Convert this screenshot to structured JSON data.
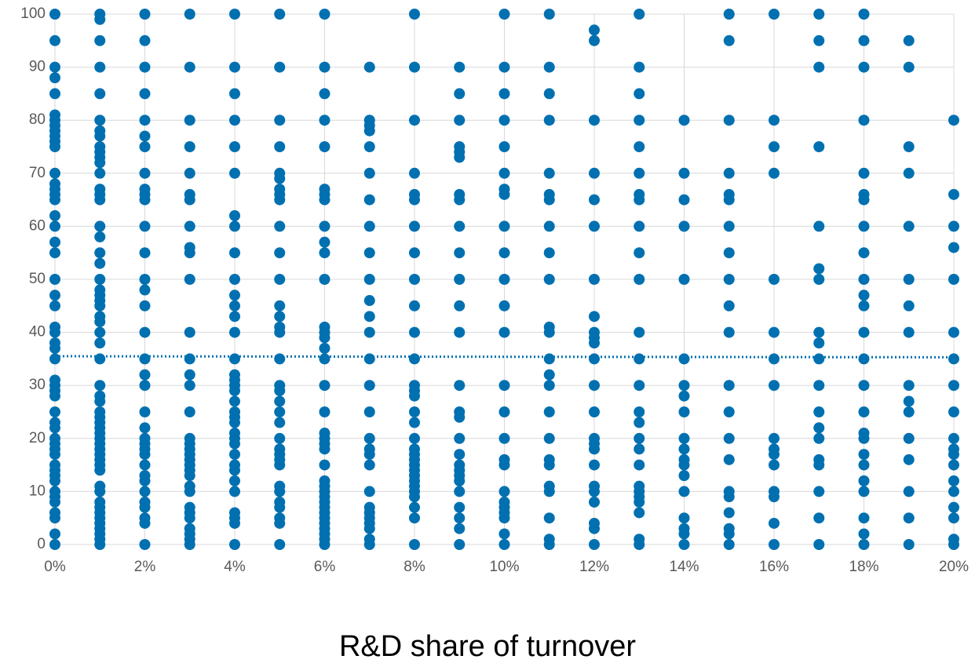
{
  "chart_data": {
    "type": "scatter",
    "x_label": "R&D share of turnover",
    "color": "#0070b0",
    "grid": true,
    "xlim": [
      0,
      20
    ],
    "ylim": [
      0,
      100
    ],
    "xticks": [
      {
        "value": 0,
        "label": "0%"
      },
      {
        "value": 2,
        "label": "2%"
      },
      {
        "value": 4,
        "label": "4%"
      },
      {
        "value": 6,
        "label": "6%"
      },
      {
        "value": 8,
        "label": "8%"
      },
      {
        "value": 10,
        "label": "10%"
      },
      {
        "value": 12,
        "label": "12%"
      },
      {
        "value": 14,
        "label": "14%"
      },
      {
        "value": 16,
        "label": "16%"
      },
      {
        "value": 18,
        "label": "18%"
      },
      {
        "value": 20,
        "label": "20%"
      }
    ],
    "yticks": [
      0,
      10,
      20,
      30,
      40,
      50,
      60,
      70,
      80,
      90,
      100
    ],
    "trendline": {
      "x": [
        0,
        20
      ],
      "values": [
        35.5,
        35.3
      ]
    },
    "x": [
      0,
      0,
      0,
      0,
      0,
      0,
      0,
      0,
      0,
      0,
      0,
      0,
      0,
      0,
      0,
      0,
      0,
      0,
      0,
      0,
      0,
      0,
      0,
      0,
      0,
      0,
      0,
      0,
      0,
      0,
      0,
      0,
      0,
      0,
      0,
      0,
      0,
      0,
      0,
      0,
      0,
      0,
      0,
      0,
      0,
      0,
      0,
      0,
      0,
      0,
      0,
      1,
      1,
      1,
      1,
      1,
      1,
      1,
      1,
      1,
      1,
      1,
      1,
      1,
      1,
      1,
      1,
      1,
      1,
      1,
      1,
      1,
      1,
      1,
      1,
      1,
      1,
      1,
      1,
      1,
      1,
      1,
      1,
      1,
      1,
      1,
      1,
      1,
      1,
      1,
      1,
      1,
      1,
      1,
      1,
      1,
      1,
      1,
      1,
      1,
      1,
      1,
      1,
      1,
      1,
      1,
      1,
      2,
      2,
      2,
      2,
      2,
      2,
      2,
      2,
      2,
      2,
      2,
      2,
      2,
      2,
      2,
      2,
      2,
      2,
      2,
      2,
      2,
      2,
      2,
      2,
      2,
      2,
      2,
      2,
      2,
      2,
      2,
      2,
      2,
      2,
      2,
      3,
      3,
      3,
      3,
      3,
      3,
      3,
      3,
      3,
      3,
      3,
      3,
      3,
      3,
      3,
      3,
      3,
      3,
      3,
      3,
      3,
      3,
      3,
      3,
      3,
      3,
      3,
      3,
      3,
      3,
      3,
      3,
      3,
      4,
      4,
      4,
      4,
      4,
      4,
      4,
      4,
      4,
      4,
      4,
      4,
      4,
      4,
      4,
      4,
      4,
      4,
      4,
      4,
      4,
      4,
      4,
      4,
      4,
      4,
      4,
      4,
      4,
      4,
      4,
      4,
      4,
      4,
      4,
      5,
      5,
      5,
      5,
      5,
      5,
      5,
      5,
      5,
      5,
      5,
      5,
      5,
      5,
      5,
      5,
      5,
      5,
      5,
      5,
      5,
      5,
      5,
      5,
      5,
      5,
      5,
      5,
      5,
      5,
      5,
      5,
      5,
      5,
      6,
      6,
      6,
      6,
      6,
      6,
      6,
      6,
      6,
      6,
      6,
      6,
      6,
      6,
      6,
      6,
      6,
      6,
      6,
      6,
      6,
      6,
      6,
      6,
      6,
      6,
      6,
      6,
      6,
      6,
      6,
      6,
      6,
      6,
      6,
      6,
      6,
      7,
      7,
      7,
      7,
      7,
      7,
      7,
      7,
      7,
      7,
      7,
      7,
      7,
      7,
      7,
      7,
      7,
      7,
      7,
      7,
      7,
      7,
      7,
      7,
      7,
      7,
      7,
      7,
      8,
      8,
      8,
      8,
      8,
      8,
      8,
      8,
      8,
      8,
      8,
      8,
      8,
      8,
      8,
      8,
      8,
      8,
      8,
      8,
      8,
      8,
      8,
      8,
      8,
      8,
      8,
      8,
      8,
      8,
      8,
      9,
      9,
      9,
      9,
      9,
      9,
      9,
      9,
      9,
      9,
      9,
      9,
      9,
      9,
      9,
      9,
      9,
      9,
      9,
      9,
      9,
      9,
      9,
      9,
      9,
      9,
      9,
      10,
      10,
      10,
      10,
      10,
      10,
      10,
      10,
      10,
      10,
      10,
      10,
      10,
      10,
      10,
      10,
      10,
      10,
      10,
      10,
      10,
      10,
      10,
      10,
      10,
      11,
      11,
      11,
      11,
      11,
      11,
      11,
      11,
      11,
      11,
      11,
      11,
      11,
      11,
      11,
      11,
      11,
      11,
      11,
      11,
      11,
      11,
      11,
      11,
      12,
      12,
      12,
      12,
      12,
      12,
      12,
      12,
      12,
      12,
      12,
      12,
      12,
      12,
      12,
      12,
      12,
      12,
      12,
      12,
      12,
      12,
      12,
      12,
      13,
      13,
      13,
      13,
      13,
      13,
      13,
      13,
      13,
      13,
      13,
      13,
      13,
      13,
      13,
      13,
      13,
      13,
      13,
      13,
      13,
      13,
      13,
      13,
      13,
      13,
      14,
      14,
      14,
      14,
      14,
      14,
      14,
      14,
      14,
      14,
      14,
      14,
      14,
      14,
      14,
      14,
      14,
      14,
      14,
      15,
      15,
      15,
      15,
      15,
      15,
      15,
      15,
      15,
      15,
      15,
      15,
      15,
      15,
      15,
      15,
      15,
      15,
      15,
      15,
      15,
      16,
      16,
      16,
      16,
      16,
      16,
      16,
      16,
      16,
      16,
      16,
      16,
      16,
      16,
      16,
      16,
      17,
      17,
      17,
      17,
      17,
      17,
      17,
      17,
      17,
      17,
      17,
      17,
      17,
      17,
      17,
      17,
      17,
      17,
      17,
      18,
      18,
      18,
      18,
      18,
      18,
      18,
      18,
      18,
      18,
      18,
      18,
      18,
      18,
      18,
      18,
      18,
      18,
      18,
      18,
      18,
      18,
      18,
      18,
      18,
      19,
      19,
      19,
      19,
      19,
      19,
      19,
      19,
      19,
      19,
      19,
      19,
      19,
      19,
      19,
      19,
      20,
      20,
      20,
      20,
      20,
      20,
      20,
      20,
      20,
      20,
      20,
      20,
      20,
      20,
      20,
      20,
      20,
      20,
      20
    ],
    "values": [
      100,
      95,
      90,
      88,
      85,
      81,
      80,
      79,
      78,
      77,
      76,
      75,
      70,
      68,
      67,
      66,
      65,
      62,
      60,
      57,
      55,
      50,
      47,
      45,
      41,
      40,
      38,
      37,
      35,
      31,
      30,
      29,
      28,
      25,
      23,
      22,
      20,
      19,
      18,
      17,
      15,
      14,
      13,
      12,
      10,
      9,
      8,
      6,
      5,
      2,
      0,
      100,
      99,
      95,
      90,
      85,
      80,
      78,
      77,
      75,
      74,
      73,
      72,
      70,
      67,
      66,
      65,
      60,
      58,
      55,
      53,
      50,
      48,
      47,
      46,
      45,
      43,
      42,
      40,
      38,
      35,
      30,
      28,
      27,
      25,
      24,
      23,
      22,
      21,
      20,
      19,
      18,
      17,
      16,
      15,
      14,
      11,
      10,
      8,
      7,
      6,
      5,
      4,
      3,
      2,
      1,
      0,
      100,
      95,
      90,
      85,
      80,
      77,
      75,
      70,
      67,
      66,
      65,
      60,
      55,
      50,
      48,
      45,
      40,
      35,
      32,
      30,
      25,
      22,
      20,
      19,
      18,
      17,
      15,
      13,
      12,
      10,
      8,
      7,
      5,
      4,
      0,
      100,
      90,
      80,
      75,
      70,
      66,
      65,
      60,
      56,
      55,
      50,
      40,
      35,
      32,
      30,
      25,
      20,
      19,
      18,
      17,
      16,
      15,
      14,
      13,
      11,
      10,
      7,
      6,
      5,
      3,
      2,
      1,
      0,
      100,
      90,
      85,
      80,
      75,
      70,
      62,
      60,
      55,
      50,
      47,
      45,
      43,
      40,
      35,
      32,
      31,
      30,
      29,
      27,
      25,
      24,
      23,
      21,
      20,
      19,
      17,
      15,
      14,
      12,
      10,
      6,
      5,
      4,
      0,
      100,
      90,
      80,
      75,
      70,
      69,
      67,
      66,
      65,
      60,
      55,
      50,
      45,
      43,
      41,
      40,
      35,
      30,
      29,
      27,
      25,
      23,
      20,
      18,
      17,
      16,
      15,
      11,
      10,
      8,
      7,
      5,
      4,
      0,
      100,
      90,
      85,
      80,
      75,
      67,
      66,
      65,
      60,
      57,
      55,
      50,
      41,
      40,
      39,
      37,
      35,
      30,
      25,
      21,
      20,
      19,
      18,
      15,
      12,
      11,
      10,
      9,
      8,
      7,
      6,
      5,
      4,
      3,
      2,
      1,
      0,
      90,
      80,
      79,
      78,
      75,
      70,
      65,
      60,
      55,
      50,
      46,
      43,
      40,
      35,
      30,
      25,
      20,
      18,
      17,
      15,
      10,
      7,
      6,
      5,
      4,
      3,
      1,
      0,
      100,
      90,
      80,
      70,
      66,
      65,
      60,
      55,
      50,
      45,
      40,
      35,
      30,
      29,
      28,
      25,
      23,
      20,
      18,
      17,
      16,
      15,
      14,
      13,
      12,
      11,
      10,
      9,
      7,
      5,
      0,
      90,
      85,
      80,
      75,
      74,
      73,
      66,
      65,
      60,
      55,
      50,
      45,
      40,
      30,
      25,
      24,
      20,
      17,
      15,
      14,
      13,
      12,
      10,
      7,
      5,
      3,
      0,
      100,
      90,
      85,
      80,
      75,
      70,
      67,
      66,
      60,
      55,
      50,
      45,
      40,
      30,
      25,
      20,
      16,
      15,
      10,
      8,
      7,
      6,
      5,
      2,
      0,
      100,
      90,
      85,
      80,
      70,
      66,
      65,
      60,
      55,
      50,
      41,
      40,
      35,
      32,
      30,
      25,
      20,
      16,
      15,
      11,
      10,
      5,
      1,
      0,
      97,
      95,
      80,
      70,
      65,
      60,
      50,
      43,
      40,
      39,
      38,
      35,
      30,
      25,
      20,
      19,
      18,
      15,
      11,
      10,
      8,
      4,
      3,
      0,
      100,
      90,
      85,
      80,
      75,
      70,
      66,
      65,
      60,
      55,
      50,
      40,
      35,
      30,
      25,
      23,
      20,
      18,
      15,
      11,
      10,
      9,
      8,
      6,
      1,
      0,
      80,
      70,
      65,
      60,
      50,
      35,
      30,
      28,
      25,
      20,
      18,
      16,
      15,
      13,
      10,
      5,
      3,
      2,
      0,
      100,
      95,
      80,
      70,
      66,
      65,
      60,
      55,
      50,
      45,
      40,
      30,
      25,
      20,
      16,
      10,
      9,
      6,
      3,
      2,
      0,
      100,
      80,
      75,
      70,
      50,
      40,
      35,
      30,
      20,
      18,
      17,
      15,
      10,
      9,
      4,
      0,
      100,
      95,
      90,
      75,
      60,
      52,
      50,
      40,
      38,
      35,
      30,
      25,
      22,
      20,
      16,
      15,
      10,
      5,
      0,
      100,
      95,
      90,
      80,
      70,
      66,
      65,
      60,
      55,
      50,
      47,
      45,
      40,
      35,
      30,
      25,
      21,
      20,
      17,
      15,
      12,
      10,
      5,
      2,
      0,
      95,
      90,
      75,
      70,
      60,
      50,
      45,
      40,
      30,
      27,
      25,
      20,
      16,
      10,
      5,
      0,
      80,
      66,
      60,
      56,
      50,
      40,
      35,
      30,
      25,
      20,
      18,
      17,
      15,
      12,
      10,
      7,
      5,
      1,
      0
    ]
  }
}
